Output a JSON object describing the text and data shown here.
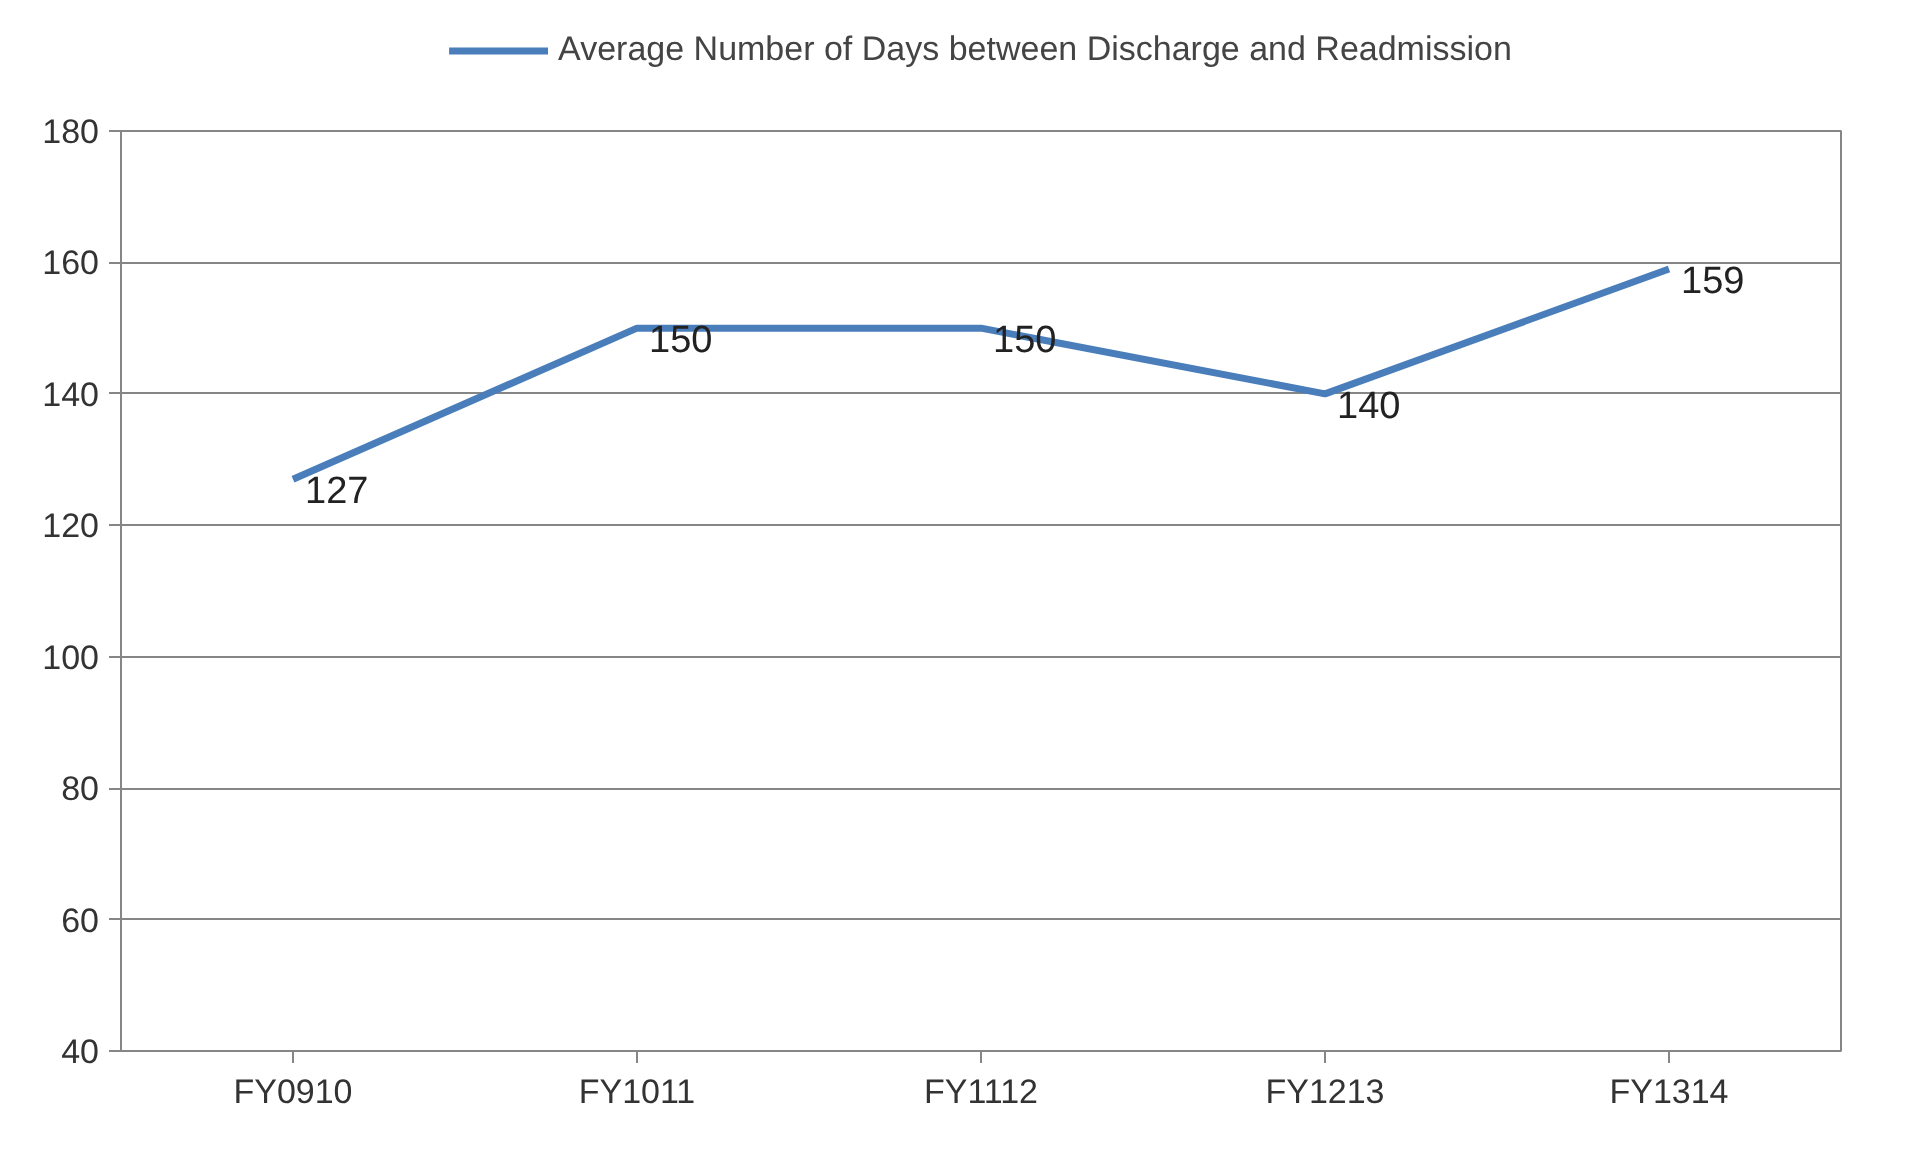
{
  "chart_data": {
    "type": "line",
    "categories": [
      "FY0910",
      "FY1011",
      "FY1112",
      "FY1213",
      "FY1314"
    ],
    "series": [
      {
        "name": "Average Number of Days between Discharge and Readmission",
        "color": "#4a7ebb",
        "values": [
          127,
          150,
          150,
          140,
          159
        ]
      }
    ],
    "ylim": [
      40,
      180
    ],
    "yticks": [
      40,
      60,
      80,
      100,
      120,
      140,
      160,
      180
    ],
    "grid": "y",
    "legend": "top",
    "data_labels": true,
    "marker": "none",
    "line_style": "solid"
  }
}
